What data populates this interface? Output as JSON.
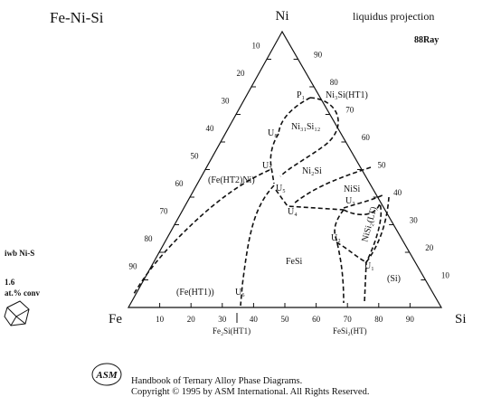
{
  "header": {
    "title": "Fe-Ni-Si",
    "apex": "Ni",
    "subtitle": "liquidus projection",
    "ref": "88Ray"
  },
  "corners": {
    "left": "Fe",
    "right": "Si"
  },
  "axes": {
    "bottom": [
      10,
      20,
      30,
      40,
      50,
      60,
      70,
      80,
      90
    ],
    "left": [
      10,
      20,
      30,
      40,
      50,
      60,
      70,
      80,
      90
    ],
    "right": [
      10,
      20,
      30,
      40,
      50,
      60,
      70,
      80,
      90
    ]
  },
  "labels": {
    "p1": "P₁",
    "ni3si": "Ni₃Si(HT1)",
    "ni31si12": "Ni₃₁Si₁₂",
    "u8": "U₈",
    "u7": "U₇",
    "ni2si": "Ni₂Si",
    "fe_ht2": "(Fe(HT2)Ni)",
    "u5": "U₅",
    "nisi": "NiSi",
    "u3": "U₃",
    "u4": "U₄",
    "u2": "U₂",
    "nisi2_lt": "NiSi₂(LT)",
    "u1": "U₁",
    "fesi": "FeSi",
    "si": "(Si)",
    "fe_ht1": "(Fe(HT1))",
    "u6": "U₆",
    "fe2si": "Fe₂Si(HT1)",
    "fesi2": "FeSi₂(HT)"
  },
  "sidebar": {
    "name": "iwb Ni-S",
    "version": "1.6",
    "mode": "at.% conv"
  },
  "footer": {
    "logo": "ASM",
    "line1": "Handbook of Ternary Alloy Phase Diagrams.",
    "line2": "Copyright © 1995 by ASM International. All Rights Reserved."
  }
}
